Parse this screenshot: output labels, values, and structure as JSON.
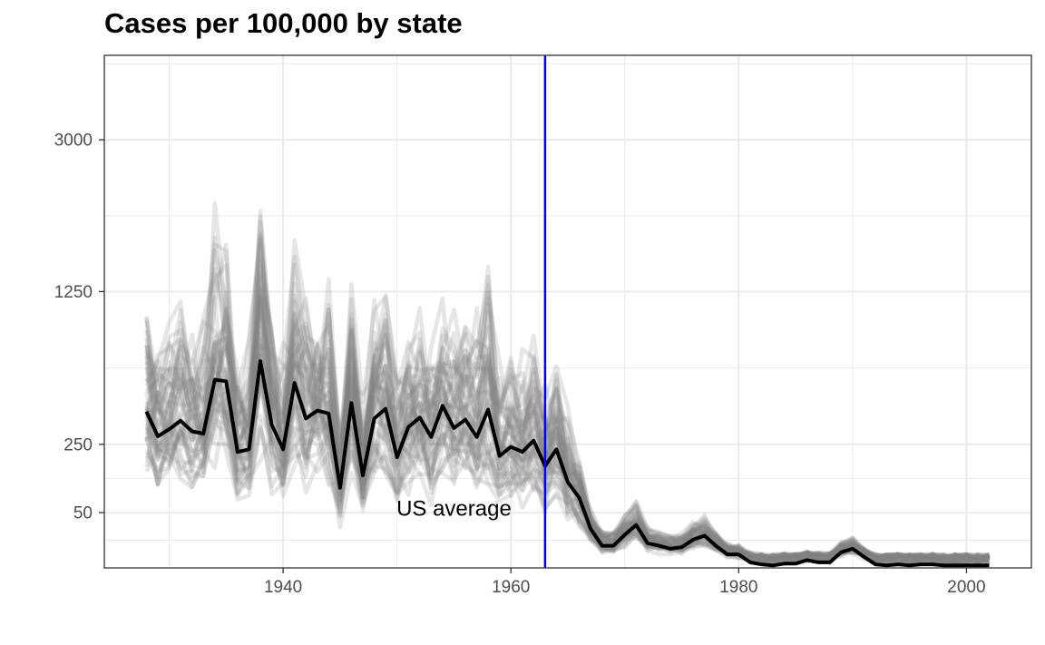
{
  "chart_data": {
    "type": "line",
    "title": "Cases per 100,000 by state",
    "xlabel": "",
    "ylabel": "",
    "x_scale": "linear",
    "y_scale": "sqrt",
    "xlim": [
      1924.3,
      2005.7
    ],
    "ylim": [
      0,
      4300
    ],
    "x_ticks": [
      1940,
      1960,
      1980,
      2000
    ],
    "y_ticks": [
      50,
      250,
      1250,
      3000
    ],
    "grid": true,
    "legend": "none",
    "colors": {
      "states": "#808080",
      "us_average": "#000000",
      "vline": "#0000ff",
      "grid": "#ebebeb",
      "border": "#333333"
    },
    "vline": {
      "x": 1963
    },
    "annotations": [
      {
        "text": "US average",
        "x": 1955,
        "y": 55
      }
    ],
    "series": [
      {
        "x": [
          1928,
          1929,
          1930,
          1931,
          1932,
          1933,
          1934,
          1935,
          1936,
          1937,
          1938,
          1939,
          1940,
          1941,
          1942,
          1943,
          1944,
          1945,
          1946,
          1947,
          1948,
          1949,
          1950,
          1951,
          1952,
          1953,
          1954,
          1955,
          1956,
          1957,
          1958,
          1959,
          1960,
          1961,
          1962,
          1963,
          1964,
          1965,
          1966,
          1967,
          1968,
          1969,
          1970,
          1971,
          1972,
          1973,
          1974,
          1975,
          1976,
          1977,
          1978,
          1979,
          1980,
          1981,
          1982,
          1983,
          1984,
          1985,
          1986,
          1987,
          1988,
          1989,
          1990,
          1991,
          1992,
          1993,
          1994,
          1995,
          1996,
          1997,
          1998,
          1999,
          2000,
          2001,
          2002
        ],
        "values": [
          400,
          283,
          315,
          355,
          305,
          295,
          580,
          570,
          220,
          230,
          700,
          335,
          230,
          560,
          365,
          405,
          390,
          105,
          445,
          140,
          365,
          415,
          200,
          325,
          370,
          280,
          430,
          320,
          360,
          280,
          410,
          205,
          240,
          220,
          265,
          170,
          230,
          120,
          80,
          25,
          8,
          8,
          18,
          30,
          10,
          8,
          6,
          7,
          13,
          17,
          8,
          3,
          3,
          0.5,
          0.2,
          0.1,
          0.3,
          0.3,
          1,
          0.5,
          0.5,
          4,
          6,
          2,
          0.2,
          0.1,
          0.2,
          0.1,
          0.2,
          0.2,
          0.1,
          0.1,
          0.1,
          0.1,
          0.1
        ]
      }
    ]
  }
}
